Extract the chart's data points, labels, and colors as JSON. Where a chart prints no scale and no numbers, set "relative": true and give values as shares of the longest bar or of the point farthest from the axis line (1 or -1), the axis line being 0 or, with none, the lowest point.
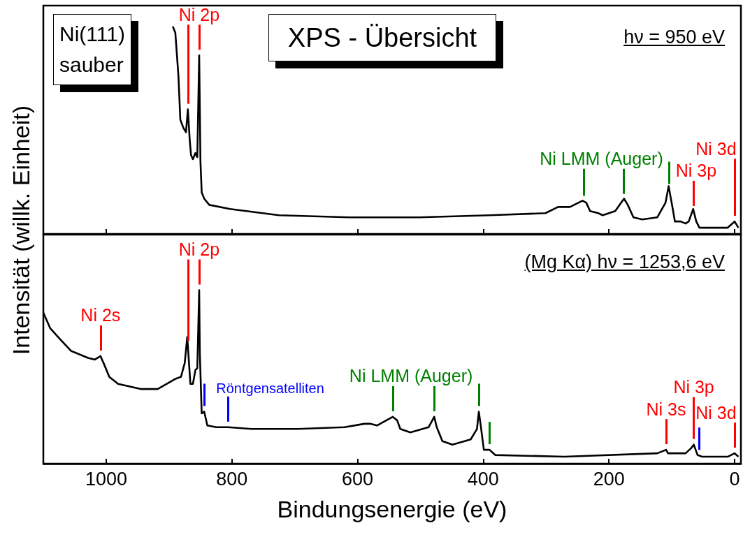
{
  "chart_data": [
    {
      "type": "line",
      "title": "XPS - Übersicht",
      "subtitle": "hν = 950 eV",
      "relative": true,
      "tick_labels": false,
      "xlim": [
        1100,
        -10
      ],
      "xticks": [
        1000,
        800,
        600,
        400,
        200,
        0
      ],
      "color": "#000000",
      "x": [
        894,
        890,
        885,
        882,
        877,
        873,
        870,
        867,
        865,
        862,
        858,
        855,
        852,
        850,
        848,
        844,
        836,
        803,
        725,
        613,
        546,
        502,
        390,
        301,
        281,
        262,
        242,
        236,
        230,
        217,
        210,
        190,
        176,
        170,
        161,
        147,
        123,
        110,
        105,
        99,
        95,
        86,
        78,
        73,
        66,
        61,
        56,
        11,
        0,
        -6
      ],
      "values": [
        1.0,
        0.97,
        0.76,
        0.55,
        0.51,
        0.49,
        0.6,
        0.45,
        0.38,
        0.36,
        0.39,
        0.37,
        0.86,
        0.35,
        0.2,
        0.17,
        0.14,
        0.12,
        0.09,
        0.08,
        0.08,
        0.08,
        0.09,
        0.1,
        0.13,
        0.13,
        0.16,
        0.15,
        0.11,
        0.1,
        0.09,
        0.11,
        0.17,
        0.14,
        0.08,
        0.07,
        0.08,
        0.15,
        0.23,
        0.13,
        0.06,
        0.06,
        0.05,
        0.06,
        0.12,
        0.06,
        0.03,
        0.03,
        0.06,
        0.03
      ],
      "annotations": [
        "Ni(111) sauber"
      ],
      "ref_lines": [
        {
          "axis": "x",
          "value": 870,
          "color": "#ff0000"
        },
        {
          "axis": "x",
          "value": 852,
          "label": "Ni 2p",
          "color": "#ff0000"
        },
        {
          "axis": "x",
          "value": 240,
          "color": "#008000"
        },
        {
          "axis": "x",
          "value": 177,
          "label": "Ni LMM (Auger)",
          "color": "#008000"
        },
        {
          "axis": "x",
          "value": 104,
          "color": "#008000"
        },
        {
          "axis": "x",
          "value": 65,
          "label": "Ni 3p",
          "color": "#ff0000"
        },
        {
          "axis": "x",
          "value": 0,
          "label": "Ni 3d",
          "color": "#ff0000"
        }
      ]
    },
    {
      "type": "line",
      "subtitle": "(Mg Kα) hν = 1253,6 eV",
      "xlabel": "Bindungsenergie (eV)",
      "ylabel": "Intensität (willk. Einheit)",
      "relative": true,
      "xlim": [
        1100,
        -10
      ],
      "xticks": [
        1000,
        800,
        600,
        400,
        200,
        0
      ],
      "color": "#000000",
      "x": [
        1100,
        1089,
        1074,
        1056,
        1029,
        1018,
        1009,
        1003,
        995,
        981,
        944,
        918,
        889,
        881,
        875,
        871,
        866,
        862,
        858,
        855,
        852,
        851,
        848,
        844,
        839,
        825,
        806,
        769,
        695,
        621,
        589,
        580,
        569,
        554,
        544,
        537,
        532,
        516,
        487,
        478,
        474,
        465,
        449,
        420,
        410,
        407,
        404,
        399,
        390,
        381,
        271,
        123,
        109,
        106,
        78,
        69,
        65,
        59,
        52,
        11,
        0,
        -6
      ],
      "values": [
        0.87,
        0.78,
        0.72,
        0.65,
        0.61,
        0.6,
        0.62,
        0.57,
        0.5,
        0.46,
        0.43,
        0.43,
        0.49,
        0.5,
        0.58,
        0.73,
        0.46,
        0.46,
        0.54,
        0.55,
        1.0,
        0.64,
        0.29,
        0.3,
        0.22,
        0.21,
        0.21,
        0.2,
        0.2,
        0.21,
        0.23,
        0.23,
        0.22,
        0.25,
        0.27,
        0.25,
        0.2,
        0.18,
        0.21,
        0.27,
        0.21,
        0.13,
        0.11,
        0.14,
        0.2,
        0.3,
        0.22,
        0.08,
        0.08,
        0.05,
        0.04,
        0.06,
        0.08,
        0.06,
        0.06,
        0.09,
        0.11,
        0.05,
        0.04,
        0.04,
        0.06,
        0.04
      ],
      "ref_lines": [
        {
          "axis": "x",
          "value": 1009,
          "label": "Ni 2s",
          "color": "#ff0000"
        },
        {
          "axis": "x",
          "value": 870,
          "color": "#ff0000"
        },
        {
          "axis": "x",
          "value": 852,
          "label": "Ni 2p",
          "color": "#ff0000"
        },
        {
          "axis": "x",
          "value": 844,
          "color": "#0000ff"
        },
        {
          "axis": "x",
          "value": 806,
          "label": "Röntgensatelliten",
          "color": "#0000ff"
        },
        {
          "axis": "x",
          "value": 544,
          "color": "#008000"
        },
        {
          "axis": "x",
          "value": 478,
          "label": "Ni LMM (Auger)",
          "color": "#008000"
        },
        {
          "axis": "x",
          "value": 407,
          "color": "#008000"
        },
        {
          "axis": "x",
          "value": 390,
          "color": "#008000"
        },
        {
          "axis": "x",
          "value": 109,
          "label": "Ni 3s",
          "color": "#ff0000"
        },
        {
          "axis": "x",
          "value": 65,
          "label": "Ni 3p",
          "color": "#ff0000"
        },
        {
          "axis": "x",
          "value": 57,
          "color": "#0000ff"
        },
        {
          "axis": "x",
          "value": 0,
          "label": "Ni 3d",
          "color": "#ff0000"
        }
      ]
    }
  ]
}
